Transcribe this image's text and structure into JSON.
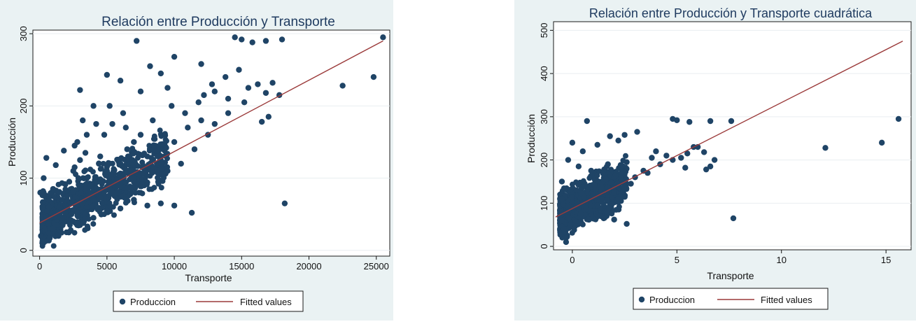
{
  "chart_data": [
    {
      "type": "scatter",
      "title": "Relación entre Producción y Transporte",
      "xlabel": "Transporte",
      "ylabel": "Producción",
      "xlim": [
        -500,
        26000
      ],
      "ylim": [
        -8,
        305
      ],
      "xticks": [
        0,
        5000,
        10000,
        15000,
        20000,
        25000
      ],
      "xtick_labels": [
        "0",
        "5000",
        "10000",
        "15000",
        "20000",
        "25000"
      ],
      "yticks": [
        0,
        100,
        200,
        300
      ],
      "ytick_labels": [
        "0",
        "100",
        "200",
        "300"
      ],
      "grid": true,
      "legend": [
        "Produccion",
        "Fitted values"
      ],
      "legend_position": "bottom-center",
      "series": [
        {
          "name": "Produccion",
          "kind": "scatter",
          "points": [
            [
              7200,
              290
            ],
            [
              14500,
              295
            ],
            [
              15000,
              292
            ],
            [
              15800,
              288
            ],
            [
              16800,
              290
            ],
            [
              18000,
              292
            ],
            [
              25500,
              295
            ],
            [
              22500,
              228
            ],
            [
              24800,
              240
            ],
            [
              18200,
              65
            ],
            [
              11300,
              52
            ],
            [
              10000,
              268
            ],
            [
              8200,
              255
            ],
            [
              5000,
              243
            ],
            [
              3000,
              222
            ],
            [
              6000,
              235
            ],
            [
              9000,
              245
            ],
            [
              12000,
              258
            ],
            [
              13000,
              220
            ],
            [
              14000,
              210
            ],
            [
              15200,
              205
            ],
            [
              16200,
              230
            ],
            [
              16800,
              218
            ],
            [
              17300,
              232
            ],
            [
              17000,
              185
            ],
            [
              16500,
              178
            ],
            [
              12500,
              160
            ],
            [
              9500,
              225
            ],
            [
              500,
              128
            ],
            [
              300,
              100
            ],
            [
              1000,
              85
            ],
            [
              2000,
              75
            ],
            [
              1500,
              50
            ],
            [
              2500,
              40
            ],
            [
              3500,
              60
            ],
            [
              4000,
              70
            ],
            [
              2200,
              95
            ],
            [
              2600,
              115
            ],
            [
              1200,
              118
            ],
            [
              1800,
              138
            ],
            [
              3000,
              125
            ],
            [
              4500,
              130
            ],
            [
              5000,
              110
            ],
            [
              5500,
              95
            ],
            [
              6000,
              120
            ],
            [
              6500,
              140
            ],
            [
              7000,
              150
            ],
            [
              7500,
              160
            ],
            [
              8000,
              130
            ],
            [
              8500,
              145
            ],
            [
              9000,
              125
            ],
            [
              9500,
              110
            ],
            [
              10000,
              150
            ],
            [
              11000,
              170
            ],
            [
              12000,
              180
            ],
            [
              13000,
              175
            ],
            [
              14000,
              190
            ],
            [
              11500,
              140
            ],
            [
              10500,
              120
            ],
            [
              9000,
              65
            ],
            [
              10000,
              62
            ],
            [
              8000,
              62
            ],
            [
              4200,
              175
            ],
            [
              3500,
              160
            ],
            [
              2800,
              150
            ],
            [
              5200,
              200
            ],
            [
              6200,
              190
            ],
            [
              4000,
              200
            ],
            [
              3200,
              180
            ],
            [
              700,
              60
            ],
            [
              500,
              45
            ],
            [
              1000,
              30
            ],
            [
              1400,
              20
            ],
            [
              2000,
              25
            ],
            [
              3000,
              35
            ],
            [
              4000,
              45
            ],
            [
              5000,
              55
            ],
            [
              6000,
              58
            ],
            [
              7000,
              70
            ],
            [
              100,
              20
            ],
            [
              200,
              10
            ],
            [
              50,
              80
            ],
            [
              2500,
              110
            ],
            [
              3800,
              90
            ],
            [
              4600,
              85
            ],
            [
              5800,
              80
            ],
            [
              6800,
              100
            ],
            [
              7800,
              110
            ],
            [
              8800,
              95
            ],
            [
              7500,
              220
            ],
            [
              5400,
              175
            ],
            [
              2600,
              145
            ],
            [
              3400,
              135
            ],
            [
              4400,
              120
            ],
            [
              4800,
              160
            ],
            [
              6400,
              170
            ],
            [
              6900,
              125
            ],
            [
              8400,
              180
            ],
            [
              9800,
              200
            ],
            [
              10800,
              190
            ],
            [
              11800,
              205
            ],
            [
              12800,
              230
            ],
            [
              13800,
              240
            ],
            [
              14800,
              250
            ],
            [
              15500,
              225
            ],
            [
              17800,
              215
            ],
            [
              12200,
              215
            ]
          ]
        },
        {
          "name": "Fitted values",
          "kind": "line",
          "points": [
            [
              0,
              38
            ],
            [
              25500,
              290
            ]
          ]
        }
      ]
    },
    {
      "type": "scatter",
      "title": "Relación entre Producción y Transporte cuadrática",
      "xlabel": "Transporte",
      "ylabel": "Producción",
      "xlim": [
        -0.9,
        16.2
      ],
      "ylim": [
        -8,
        520
      ],
      "xticks": [
        0,
        5,
        10,
        15
      ],
      "xtick_labels": [
        "0",
        "5",
        "10",
        "15"
      ],
      "yticks": [
        0,
        100,
        200,
        300,
        400,
        500
      ],
      "ytick_labels": [
        "0",
        "100",
        "200",
        "300",
        "400",
        "500"
      ],
      "grid": true,
      "legend": [
        "Produccion",
        "Fitted values"
      ],
      "legend_position": "bottom-center",
      "series": [
        {
          "name": "Produccion",
          "kind": "scatter",
          "points": [
            [
              15.6,
              295
            ],
            [
              14.8,
              240
            ],
            [
              12.1,
              228
            ],
            [
              7.7,
              65
            ],
            [
              7.6,
              290
            ],
            [
              6.6,
              290
            ],
            [
              5.6,
              288
            ],
            [
              5.0,
              292
            ],
            [
              4.8,
              295
            ],
            [
              2.6,
              52
            ],
            [
              3.1,
              265
            ],
            [
              1.8,
              255
            ],
            [
              0.7,
              290
            ],
            [
              0.0,
              240
            ],
            [
              0.5,
              220
            ],
            [
              1.2,
              235
            ],
            [
              2.2,
              245
            ],
            [
              2.5,
              258
            ],
            [
              4.0,
              220
            ],
            [
              4.5,
              210
            ],
            [
              5.2,
              205
            ],
            [
              5.8,
              230
            ],
            [
              6.3,
              218
            ],
            [
              6.8,
              200
            ],
            [
              6.6,
              185
            ],
            [
              6.4,
              178
            ],
            [
              6.0,
              230
            ],
            [
              5.4,
              182
            ],
            [
              3.6,
              170
            ],
            [
              3.0,
              160
            ],
            [
              2.4,
              150
            ],
            [
              1.6,
              155
            ],
            [
              1.0,
              120
            ],
            [
              0.5,
              100
            ],
            [
              -0.5,
              60
            ],
            [
              -0.4,
              40
            ],
            [
              -0.3,
              20
            ],
            [
              -0.2,
              80
            ],
            [
              0.2,
              130
            ],
            [
              0.6,
              140
            ],
            [
              1.4,
              135
            ],
            [
              2.0,
              125
            ],
            [
              2.8,
              145
            ],
            [
              3.4,
              175
            ],
            [
              4.2,
              190
            ],
            [
              4.8,
              200
            ],
            [
              5.5,
              215
            ],
            [
              1.5,
              65
            ],
            [
              2.0,
              62
            ],
            [
              0.8,
              62
            ],
            [
              -0.5,
              110
            ],
            [
              -0.5,
              150
            ],
            [
              0.3,
              185
            ],
            [
              -0.2,
              200
            ],
            [
              0.9,
              175
            ],
            [
              1.7,
              190
            ],
            [
              2.6,
              195
            ],
            [
              3.8,
              205
            ],
            [
              2.2,
              110
            ],
            [
              1.2,
              95
            ],
            [
              0.4,
              75
            ],
            [
              -0.1,
              50
            ],
            [
              -0.3,
              10
            ]
          ]
        },
        {
          "name": "Fitted values",
          "kind": "line",
          "points": [
            [
              -0.8,
              68
            ],
            [
              15.8,
              475
            ]
          ]
        }
      ]
    }
  ]
}
